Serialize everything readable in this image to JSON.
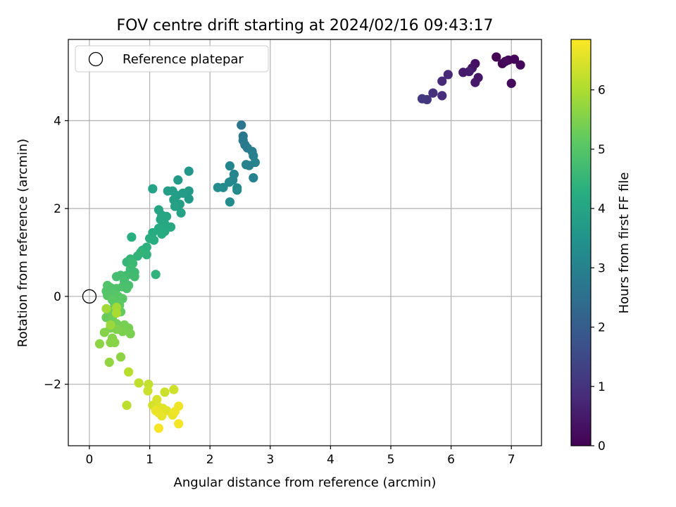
{
  "chart_data": {
    "type": "scatter",
    "title": "FOV centre drift starting at 2024/02/16 09:43:17",
    "xlabel": "Angular distance from reference (arcmin)",
    "ylabel": "Rotation from reference (arcmin)",
    "xlim": [
      -0.35,
      7.5
    ],
    "ylim": [
      -3.4,
      5.85
    ],
    "x_ticks": [
      0,
      1,
      2,
      3,
      4,
      5,
      6,
      7
    ],
    "y_ticks": [
      -2,
      0,
      2,
      4
    ],
    "x_tick_labels": [
      "0",
      "1",
      "2",
      "3",
      "4",
      "5",
      "6",
      "7"
    ],
    "y_tick_labels": [
      "−2",
      "0",
      "2",
      "4"
    ],
    "grid": true,
    "legend": {
      "placement": "top-left",
      "entries": [
        "Reference platepar"
      ]
    },
    "reference_point": {
      "x": 0,
      "y": 0,
      "label": "Reference platepar"
    },
    "colorbar": {
      "label": "Hours from first FF file",
      "range": [
        0,
        6.85
      ],
      "ticks": [
        0,
        1,
        2,
        3,
        4,
        5,
        6
      ],
      "tick_labels": [
        "0",
        "1",
        "2",
        "3",
        "4",
        "5",
        "6"
      ],
      "colormap": "viridis"
    },
    "points": [
      {
        "x": 6.75,
        "y": 5.45,
        "c": 0.0
      },
      {
        "x": 6.85,
        "y": 5.3,
        "c": 0.05
      },
      {
        "x": 6.95,
        "y": 5.38,
        "c": 0.08
      },
      {
        "x": 7.05,
        "y": 5.4,
        "c": 0.1
      },
      {
        "x": 7.15,
        "y": 5.27,
        "c": 0.12
      },
      {
        "x": 7.0,
        "y": 4.85,
        "c": 0.15
      },
      {
        "x": 6.9,
        "y": 5.35,
        "c": 0.18
      },
      {
        "x": 6.4,
        "y": 5.3,
        "c": 0.3
      },
      {
        "x": 6.35,
        "y": 5.2,
        "c": 0.35
      },
      {
        "x": 6.45,
        "y": 4.98,
        "c": 0.4
      },
      {
        "x": 6.4,
        "y": 4.87,
        "c": 0.45
      },
      {
        "x": 6.2,
        "y": 5.1,
        "c": 0.5
      },
      {
        "x": 6.3,
        "y": 5.12,
        "c": 0.55
      },
      {
        "x": 5.95,
        "y": 5.05,
        "c": 0.75
      },
      {
        "x": 5.85,
        "y": 4.9,
        "c": 0.8
      },
      {
        "x": 5.85,
        "y": 4.57,
        "c": 0.85
      },
      {
        "x": 5.7,
        "y": 4.63,
        "c": 0.95
      },
      {
        "x": 5.6,
        "y": 4.48,
        "c": 1.05
      },
      {
        "x": 5.52,
        "y": 4.5,
        "c": 1.1
      },
      {
        "x": 2.52,
        "y": 3.9,
        "c": 2.65
      },
      {
        "x": 2.55,
        "y": 3.65,
        "c": 2.7
      },
      {
        "x": 2.55,
        "y": 3.55,
        "c": 2.75
      },
      {
        "x": 2.58,
        "y": 3.45,
        "c": 2.8
      },
      {
        "x": 2.62,
        "y": 3.38,
        "c": 2.85
      },
      {
        "x": 2.7,
        "y": 3.3,
        "c": 2.9
      },
      {
        "x": 2.72,
        "y": 3.2,
        "c": 2.95
      },
      {
        "x": 2.75,
        "y": 3.05,
        "c": 3.0
      },
      {
        "x": 2.65,
        "y": 2.98,
        "c": 3.0
      },
      {
        "x": 2.6,
        "y": 3.0,
        "c": 3.05
      },
      {
        "x": 2.72,
        "y": 2.7,
        "c": 3.05
      },
      {
        "x": 2.33,
        "y": 2.97,
        "c": 3.1
      },
      {
        "x": 2.4,
        "y": 2.78,
        "c": 3.15
      },
      {
        "x": 2.38,
        "y": 2.65,
        "c": 3.15
      },
      {
        "x": 2.32,
        "y": 2.6,
        "c": 3.2
      },
      {
        "x": 2.45,
        "y": 2.47,
        "c": 3.2
      },
      {
        "x": 2.45,
        "y": 2.42,
        "c": 3.25
      },
      {
        "x": 2.22,
        "y": 2.48,
        "c": 3.25
      },
      {
        "x": 2.13,
        "y": 2.48,
        "c": 3.3
      },
      {
        "x": 2.33,
        "y": 2.15,
        "c": 3.3
      },
      {
        "x": 1.65,
        "y": 2.85,
        "c": 3.6
      },
      {
        "x": 1.47,
        "y": 2.65,
        "c": 3.65
      },
      {
        "x": 1.65,
        "y": 2.4,
        "c": 3.7
      },
      {
        "x": 1.65,
        "y": 2.22,
        "c": 3.7
      },
      {
        "x": 1.55,
        "y": 2.35,
        "c": 3.75
      },
      {
        "x": 1.45,
        "y": 2.3,
        "c": 3.75
      },
      {
        "x": 1.38,
        "y": 2.4,
        "c": 3.8
      },
      {
        "x": 1.3,
        "y": 2.4,
        "c": 3.8
      },
      {
        "x": 1.4,
        "y": 2.2,
        "c": 3.85
      },
      {
        "x": 1.5,
        "y": 2.1,
        "c": 3.85
      },
      {
        "x": 1.42,
        "y": 2.05,
        "c": 3.9
      },
      {
        "x": 1.52,
        "y": 1.9,
        "c": 3.9
      },
      {
        "x": 1.05,
        "y": 2.45,
        "c": 3.95
      },
      {
        "x": 1.15,
        "y": 1.97,
        "c": 4.0
      },
      {
        "x": 1.2,
        "y": 1.85,
        "c": 4.0
      },
      {
        "x": 1.28,
        "y": 1.82,
        "c": 4.05
      },
      {
        "x": 1.18,
        "y": 1.75,
        "c": 4.05
      },
      {
        "x": 1.25,
        "y": 1.65,
        "c": 4.1
      },
      {
        "x": 1.35,
        "y": 1.58,
        "c": 4.1
      },
      {
        "x": 1.15,
        "y": 1.55,
        "c": 4.15
      },
      {
        "x": 1.25,
        "y": 1.48,
        "c": 4.15
      },
      {
        "x": 1.2,
        "y": 1.42,
        "c": 4.2
      },
      {
        "x": 1.05,
        "y": 1.45,
        "c": 4.2
      },
      {
        "x": 1.0,
        "y": 1.32,
        "c": 4.25
      },
      {
        "x": 1.07,
        "y": 1.28,
        "c": 4.25
      },
      {
        "x": 0.7,
        "y": 1.35,
        "c": 4.3
      },
      {
        "x": 0.95,
        "y": 1.12,
        "c": 4.35
      },
      {
        "x": 0.88,
        "y": 1.05,
        "c": 4.35
      },
      {
        "x": 0.95,
        "y": 0.95,
        "c": 4.4
      },
      {
        "x": 0.8,
        "y": 0.92,
        "c": 4.45
      },
      {
        "x": 0.85,
        "y": 1.0,
        "c": 4.45
      },
      {
        "x": 1.1,
        "y": 0.5,
        "c": 4.4
      },
      {
        "x": 0.68,
        "y": 0.85,
        "c": 4.5
      },
      {
        "x": 0.62,
        "y": 0.78,
        "c": 4.55
      },
      {
        "x": 0.72,
        "y": 0.75,
        "c": 4.6
      },
      {
        "x": 0.68,
        "y": 0.62,
        "c": 4.65
      },
      {
        "x": 0.75,
        "y": 0.55,
        "c": 4.65
      },
      {
        "x": 0.75,
        "y": 0.45,
        "c": 4.7
      },
      {
        "x": 0.62,
        "y": 0.48,
        "c": 4.7
      },
      {
        "x": 0.52,
        "y": 0.48,
        "c": 4.75
      },
      {
        "x": 0.45,
        "y": 0.45,
        "c": 4.75
      },
      {
        "x": 0.58,
        "y": 0.35,
        "c": 4.8
      },
      {
        "x": 0.65,
        "y": 0.25,
        "c": 4.8
      },
      {
        "x": 0.62,
        "y": 0.18,
        "c": 4.85
      },
      {
        "x": 0.55,
        "y": 0.22,
        "c": 4.85
      },
      {
        "x": 0.45,
        "y": 0.18,
        "c": 4.9
      },
      {
        "x": 0.35,
        "y": 0.2,
        "c": 4.9
      },
      {
        "x": 0.3,
        "y": 0.25,
        "c": 4.95
      },
      {
        "x": 0.28,
        "y": 0.12,
        "c": 4.95
      },
      {
        "x": 0.4,
        "y": 0.05,
        "c": 5.0
      },
      {
        "x": 0.3,
        "y": 0.02,
        "c": 5.0
      },
      {
        "x": 0.48,
        "y": 0.0,
        "c": 5.05
      },
      {
        "x": 0.55,
        "y": -0.05,
        "c": 5.05
      },
      {
        "x": 0.38,
        "y": -0.08,
        "c": 5.1
      },
      {
        "x": 0.42,
        "y": -0.18,
        "c": 5.1
      },
      {
        "x": 0.5,
        "y": -0.2,
        "c": 5.15
      },
      {
        "x": 0.48,
        "y": -0.28,
        "c": 5.15
      },
      {
        "x": 0.52,
        "y": -0.35,
        "c": 5.2
      },
      {
        "x": 0.4,
        "y": -0.38,
        "c": 5.2
      },
      {
        "x": 0.32,
        "y": -0.42,
        "c": 5.25
      },
      {
        "x": 0.28,
        "y": -0.48,
        "c": 5.25
      },
      {
        "x": 0.3,
        "y": -0.3,
        "c": 5.3
      },
      {
        "x": 0.38,
        "y": -0.5,
        "c": 5.3
      },
      {
        "x": 0.45,
        "y": -0.62,
        "c": 5.35
      },
      {
        "x": 0.52,
        "y": -0.68,
        "c": 5.35
      },
      {
        "x": 0.58,
        "y": -0.65,
        "c": 5.4
      },
      {
        "x": 0.65,
        "y": -0.72,
        "c": 5.4
      },
      {
        "x": 0.68,
        "y": -0.85,
        "c": 5.45
      },
      {
        "x": 0.55,
        "y": -0.8,
        "c": 5.45
      },
      {
        "x": 0.45,
        "y": -0.75,
        "c": 5.5
      },
      {
        "x": 0.35,
        "y": -0.72,
        "c": 5.5
      },
      {
        "x": 0.25,
        "y": -0.82,
        "c": 5.55
      },
      {
        "x": 0.38,
        "y": -0.95,
        "c": 5.55
      },
      {
        "x": 0.42,
        "y": -1.05,
        "c": 5.6
      },
      {
        "x": 0.35,
        "y": -1.05,
        "c": 5.6
      },
      {
        "x": 0.17,
        "y": -1.08,
        "c": 5.65
      },
      {
        "x": 0.52,
        "y": -1.38,
        "c": 5.65
      },
      {
        "x": 0.33,
        "y": -1.5,
        "c": 5.7
      },
      {
        "x": 0.35,
        "y": -0.65,
        "c": 5.8
      },
      {
        "x": 0.28,
        "y": -0.28,
        "c": 5.85
      },
      {
        "x": 0.45,
        "y": -0.25,
        "c": 5.9
      },
      {
        "x": 0.45,
        "y": -0.38,
        "c": 5.95
      },
      {
        "x": 0.65,
        "y": -1.72,
        "c": 6.1
      },
      {
        "x": 0.62,
        "y": -2.48,
        "c": 6.15
      },
      {
        "x": 0.82,
        "y": -1.97,
        "c": 6.2
      },
      {
        "x": 0.98,
        "y": -2.0,
        "c": 6.25
      },
      {
        "x": 0.97,
        "y": -2.15,
        "c": 6.3
      },
      {
        "x": 1.25,
        "y": -2.18,
        "c": 6.3
      },
      {
        "x": 1.4,
        "y": -2.12,
        "c": 6.35
      },
      {
        "x": 1.05,
        "y": -2.48,
        "c": 6.4
      },
      {
        "x": 1.12,
        "y": -2.35,
        "c": 6.45
      },
      {
        "x": 1.15,
        "y": -2.52,
        "c": 6.5
      },
      {
        "x": 1.22,
        "y": -2.55,
        "c": 6.55
      },
      {
        "x": 1.28,
        "y": -2.6,
        "c": 6.55
      },
      {
        "x": 1.15,
        "y": -2.65,
        "c": 6.6
      },
      {
        "x": 1.2,
        "y": -2.72,
        "c": 6.6
      },
      {
        "x": 1.1,
        "y": -2.6,
        "c": 6.65
      },
      {
        "x": 1.38,
        "y": -2.7,
        "c": 6.65
      },
      {
        "x": 1.42,
        "y": -2.62,
        "c": 6.7
      },
      {
        "x": 1.48,
        "y": -2.5,
        "c": 6.7
      },
      {
        "x": 1.48,
        "y": -2.9,
        "c": 6.75
      },
      {
        "x": 1.15,
        "y": -3.0,
        "c": 6.8
      }
    ]
  }
}
